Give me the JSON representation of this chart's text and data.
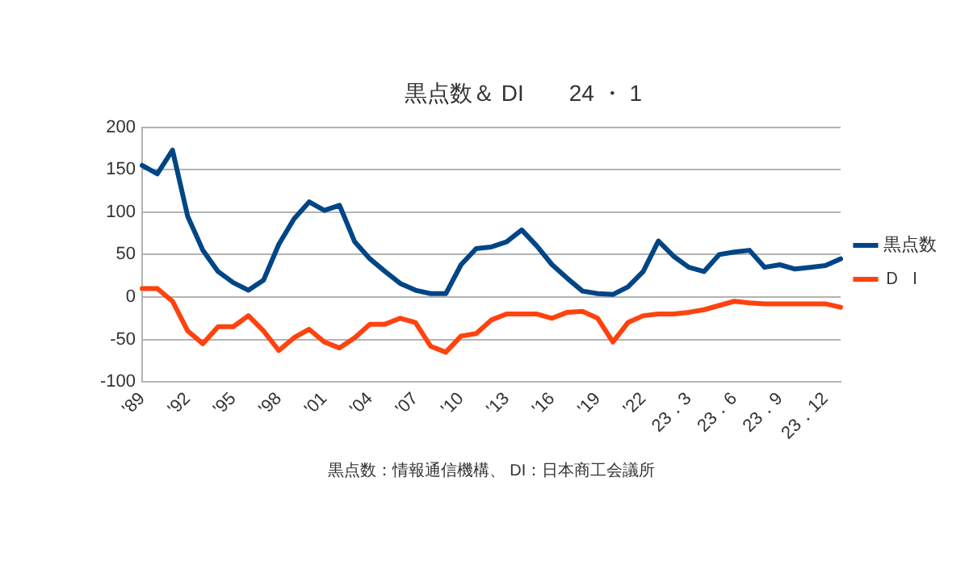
{
  "chart_data": {
    "type": "line",
    "title": "黒点数＆ DI　　24 ・ 1",
    "categories": [
      "'89",
      null,
      null,
      "'92",
      null,
      null,
      "'95",
      null,
      null,
      "'98",
      null,
      null,
      "'01",
      null,
      null,
      "'04",
      null,
      null,
      "'07",
      null,
      null,
      "'10",
      null,
      null,
      "'13",
      null,
      null,
      "'16",
      null,
      null,
      "'19",
      null,
      null,
      "'22",
      null,
      null,
      "23．3",
      null,
      null,
      "23．6",
      null,
      null,
      "23．9",
      null,
      null,
      "23．12",
      null
    ],
    "series": [
      {
        "name": "黒点数",
        "color": "#004586",
        "values": [
          155,
          145,
          173,
          95,
          55,
          30,
          17,
          8,
          20,
          62,
          92,
          112,
          102,
          108,
          65,
          45,
          30,
          16,
          8,
          4,
          4,
          38,
          57,
          59,
          65,
          79,
          60,
          38,
          22,
          7,
          4,
          3,
          12,
          30,
          66,
          48,
          35,
          30,
          50,
          53,
          55,
          35,
          38,
          33,
          35,
          37,
          45
        ]
      },
      {
        "name": "Ｄ Ｉ",
        "color": "#ff420e",
        "values": [
          10,
          10,
          -5,
          -40,
          -55,
          -35,
          -35,
          -22,
          -40,
          -63,
          -48,
          -38,
          -53,
          -60,
          -48,
          -32,
          -32,
          -25,
          -30,
          -58,
          -65,
          -46,
          -43,
          -27,
          -20,
          -20,
          -20,
          -25,
          -18,
          -17,
          -25,
          -53,
          -30,
          -22,
          -20,
          -20,
          -18,
          -15,
          -10,
          -5,
          -7,
          -8,
          -8,
          -8,
          -8,
          -8,
          -12
        ]
      }
    ],
    "ylim": [
      -100,
      200
    ],
    "yticks": [
      -100,
      -50,
      0,
      50,
      100,
      150,
      200
    ],
    "grid": "y",
    "legend": "right",
    "marker": "none",
    "line_style": "solid",
    "annotations": [
      "黒点数：情報通信機構、 DI：日本商工会議所"
    ]
  }
}
